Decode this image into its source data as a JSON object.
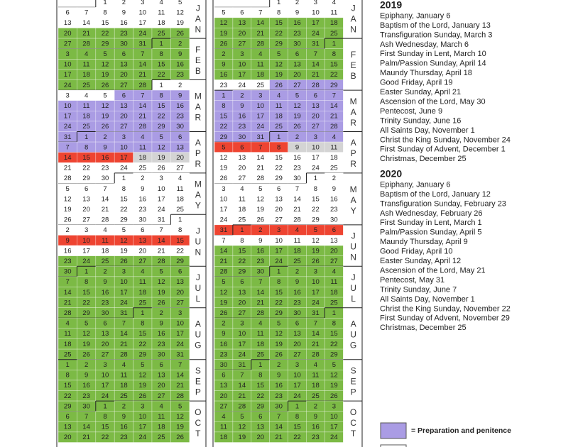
{
  "calendars": [
    {
      "months": [
        "JAN",
        "FEB",
        "MAR",
        "APR",
        "MAY",
        "JUN",
        "JUL",
        "AUG",
        "SEP",
        "OCT"
      ],
      "weeks": [
        [
          null,
          null,
          1,
          2,
          3,
          4,
          5
        ],
        [
          6,
          7,
          8,
          9,
          10,
          11,
          12
        ],
        [
          13,
          14,
          15,
          16,
          17,
          18,
          19
        ],
        [
          20,
          21,
          22,
          23,
          24,
          25,
          26
        ],
        [
          27,
          28,
          29,
          30,
          31,
          1,
          2
        ],
        [
          3,
          4,
          5,
          6,
          7,
          8,
          9
        ],
        [
          10,
          11,
          12,
          13,
          14,
          15,
          16
        ],
        [
          17,
          18,
          19,
          20,
          21,
          22,
          23
        ],
        [
          24,
          25,
          26,
          27,
          28,
          1,
          2
        ],
        [
          3,
          4,
          5,
          6,
          7,
          8,
          9
        ],
        [
          10,
          11,
          12,
          13,
          14,
          15,
          16
        ],
        [
          17,
          18,
          19,
          20,
          21,
          22,
          23
        ],
        [
          24,
          25,
          26,
          27,
          28,
          29,
          30
        ],
        [
          31,
          1,
          2,
          3,
          4,
          5,
          6
        ],
        [
          7,
          8,
          9,
          10,
          11,
          12,
          13
        ],
        [
          14,
          15,
          16,
          17,
          18,
          19,
          20
        ],
        [
          21,
          22,
          23,
          24,
          25,
          26,
          27
        ],
        [
          28,
          29,
          30,
          1,
          2,
          3,
          4
        ],
        [
          5,
          6,
          7,
          8,
          9,
          10,
          11
        ],
        [
          12,
          13,
          14,
          15,
          16,
          17,
          18
        ],
        [
          19,
          20,
          21,
          22,
          23,
          24,
          25
        ],
        [
          26,
          27,
          28,
          29,
          30,
          31,
          1
        ],
        [
          2,
          3,
          4,
          5,
          6,
          7,
          8
        ],
        [
          9,
          10,
          11,
          12,
          13,
          14,
          15
        ],
        [
          16,
          17,
          18,
          19,
          20,
          21,
          22
        ],
        [
          23,
          24,
          25,
          26,
          27,
          28,
          29
        ],
        [
          30,
          1,
          2,
          3,
          4,
          5,
          6
        ],
        [
          7,
          8,
          9,
          10,
          11,
          12,
          13
        ],
        [
          14,
          15,
          16,
          17,
          18,
          19,
          20
        ],
        [
          21,
          22,
          23,
          24,
          25,
          26,
          27
        ],
        [
          28,
          29,
          30,
          31,
          1,
          2,
          3
        ],
        [
          4,
          5,
          6,
          7,
          8,
          9,
          10
        ],
        [
          11,
          12,
          13,
          14,
          15,
          16,
          17
        ],
        [
          18,
          19,
          20,
          21,
          22,
          23,
          24
        ],
        [
          25,
          26,
          27,
          28,
          29,
          30,
          31
        ],
        [
          1,
          2,
          3,
          4,
          5,
          6,
          7
        ],
        [
          8,
          9,
          10,
          11,
          12,
          13,
          14
        ],
        [
          15,
          16,
          17,
          18,
          19,
          20,
          21
        ],
        [
          22,
          23,
          24,
          25,
          26,
          27,
          28
        ],
        [
          29,
          30,
          1,
          2,
          3,
          4,
          5
        ],
        [
          6,
          7,
          8,
          9,
          10,
          11,
          12
        ],
        [
          13,
          14,
          15,
          16,
          17,
          18,
          19
        ],
        [
          20,
          21,
          22,
          23,
          24,
          25,
          26
        ]
      ],
      "fills": [
        "wwwwwww",
        "wwwwwww",
        "wwwwwww",
        "ggggggg",
        "ggggggg",
        "ggggggg",
        "ggggggg",
        "ggggggg",
        "gggggww",
        "wwwpppp",
        "ppppppp",
        "ppppppp",
        "ppppppp",
        "ppppppp",
        "ppppppp",
        "rrrrsss",
        "wwwwwww",
        "wwwwwww",
        "wwwwwww",
        "wwwwwww",
        "wwwwwww",
        "wwwwwww",
        "wwwwwww",
        "rrrrrrr",
        "wwwwwww",
        "ggggggg",
        "ggggggg",
        "ggggggg",
        "ggggggg",
        "ggggggg",
        "ggggggg",
        "ggggggg",
        "ggggggg",
        "ggggggg",
        "ggggggg",
        "ggggggg",
        "ggggggg",
        "ggggggg",
        "ggggggg",
        "ggggggg",
        "ggggggg",
        "ggggggg",
        "ggggggg"
      ]
    },
    {
      "months": [
        "JAN",
        "FEB",
        "MAR",
        "APR",
        "MAY",
        "JUN",
        "JUL",
        "AUG",
        "SEP",
        "OCT"
      ],
      "weeks": [
        [
          null,
          null,
          null,
          1,
          2,
          3,
          4
        ],
        [
          5,
          6,
          7,
          8,
          9,
          10,
          11
        ],
        [
          12,
          13,
          14,
          15,
          16,
          17,
          18
        ],
        [
          19,
          20,
          21,
          22,
          23,
          24,
          25
        ],
        [
          26,
          27,
          28,
          29,
          30,
          31,
          1
        ],
        [
          2,
          3,
          4,
          5,
          6,
          7,
          8
        ],
        [
          9,
          10,
          11,
          12,
          13,
          14,
          15
        ],
        [
          16,
          17,
          18,
          19,
          20,
          21,
          22
        ],
        [
          23,
          24,
          25,
          26,
          27,
          28,
          29
        ],
        [
          1,
          2,
          3,
          4,
          5,
          6,
          7
        ],
        [
          8,
          9,
          10,
          11,
          12,
          13,
          14
        ],
        [
          15,
          16,
          17,
          18,
          19,
          20,
          21
        ],
        [
          22,
          23,
          24,
          25,
          26,
          27,
          28
        ],
        [
          29,
          30,
          31,
          1,
          2,
          3,
          4
        ],
        [
          5,
          6,
          7,
          8,
          9,
          10,
          11
        ],
        [
          12,
          13,
          14,
          15,
          16,
          17,
          18
        ],
        [
          19,
          20,
          21,
          22,
          23,
          24,
          25
        ],
        [
          26,
          27,
          28,
          29,
          30,
          1,
          2
        ],
        [
          3,
          4,
          5,
          6,
          7,
          8,
          9
        ],
        [
          10,
          11,
          12,
          13,
          14,
          15,
          16
        ],
        [
          17,
          18,
          19,
          20,
          21,
          22,
          23
        ],
        [
          24,
          25,
          26,
          27,
          28,
          29,
          30
        ],
        [
          31,
          1,
          2,
          3,
          4,
          5,
          6
        ],
        [
          7,
          8,
          9,
          10,
          11,
          12,
          13
        ],
        [
          14,
          15,
          16,
          17,
          18,
          19,
          20
        ],
        [
          21,
          22,
          23,
          24,
          25,
          26,
          27
        ],
        [
          28,
          29,
          30,
          1,
          2,
          3,
          4
        ],
        [
          5,
          6,
          7,
          8,
          9,
          10,
          11
        ],
        [
          12,
          13,
          14,
          15,
          16,
          17,
          18
        ],
        [
          19,
          20,
          21,
          22,
          23,
          24,
          25
        ],
        [
          26,
          27,
          28,
          29,
          30,
          31,
          1
        ],
        [
          2,
          3,
          4,
          5,
          6,
          7,
          8
        ],
        [
          9,
          10,
          11,
          12,
          13,
          14,
          15
        ],
        [
          16,
          17,
          18,
          19,
          20,
          21,
          22
        ],
        [
          23,
          24,
          25,
          26,
          27,
          28,
          29
        ],
        [
          30,
          31,
          1,
          2,
          3,
          4,
          5
        ],
        [
          6,
          7,
          8,
          9,
          10,
          11,
          12
        ],
        [
          13,
          14,
          15,
          16,
          17,
          18,
          19
        ],
        [
          20,
          21,
          22,
          23,
          24,
          25,
          26
        ],
        [
          27,
          28,
          29,
          30,
          1,
          2,
          3
        ],
        [
          4,
          5,
          6,
          7,
          8,
          9,
          10
        ],
        [
          11,
          12,
          13,
          14,
          15,
          16,
          17
        ],
        [
          18,
          19,
          20,
          21,
          22,
          23,
          24
        ]
      ],
      "fills": [
        "wwwwwww",
        "wwwwwww",
        "ggggggg",
        "ggggggg",
        "ggggggg",
        "ggggggg",
        "ggggggg",
        "ggggggg",
        "wwwpppp",
        "ppppppp",
        "ppppppp",
        "ppppppp",
        "ppppppp",
        "ppppppp",
        "rrrrsss",
        "wwwwwww",
        "wwwwwww",
        "wwwwwww",
        "wwwwwww",
        "wwwwwww",
        "wwwwwww",
        "wwwwwww",
        "rrrrrrr",
        "wwwwwww",
        "ggggggg",
        "ggggggg",
        "ggggggg",
        "ggggggg",
        "ggggggg",
        "ggggggg",
        "ggggggg",
        "ggggggg",
        "ggggggg",
        "ggggggg",
        "ggggggg",
        "ggggggg",
        "ggggggg",
        "ggggggg",
        "ggggggg",
        "ggggggg",
        "ggggggg",
        "ggggggg",
        "ggggggg"
      ]
    }
  ],
  "colors": {
    "g": "#7cba45",
    "p": "#aa9ce4",
    "r": "#ee4431",
    "s": "#d4d4d4",
    "w": "#ffffff"
  },
  "years": [
    {
      "title": "2019",
      "events": [
        "Epiphany, January 6",
        "Baptism of the Lord, January 13",
        "Transfiguration Sunday, March 3",
        "Ash Wednesday, March 6",
        "First Sunday in Lent, March 10",
        "Palm/Passion Sunday, April 14",
        "Maundy Thursday, April 18",
        "Good Friday, April 19",
        "Easter Sunday, April 21",
        "Ascension of the Lord, May 30",
        "Pentecost, June 9",
        "Trinity Sunday, June 16",
        "All Saints Day, November 1",
        "Christ the King Sunday, November 24",
        "First Sunday of Advent, December 1",
        "Christmas, December 25"
      ]
    },
    {
      "title": "2020",
      "events": [
        "Epiphany, January 6",
        "Baptism of the Lord, January 12",
        "Transfiguration Sunday, February 23",
        "Ash Wednesday, February 26",
        "First Sunday in Lent, March 1",
        "Palm/Passion Sunday, April 5",
        "Maundy Thursday, April 9",
        "Good Friday, April 10",
        "Easter Sunday, April 12",
        "Ascension of the Lord, May 21",
        "Pentecost, May 31",
        "Trinity Sunday, June 7",
        "All Saints Day, November 1",
        "Christ the King Sunday, November 22",
        "First Sunday of Advent, November 29",
        "Christmas, December 25"
      ]
    }
  ],
  "legend": {
    "label": "= Preparation and penitence",
    "color": "#aa9ce4"
  }
}
